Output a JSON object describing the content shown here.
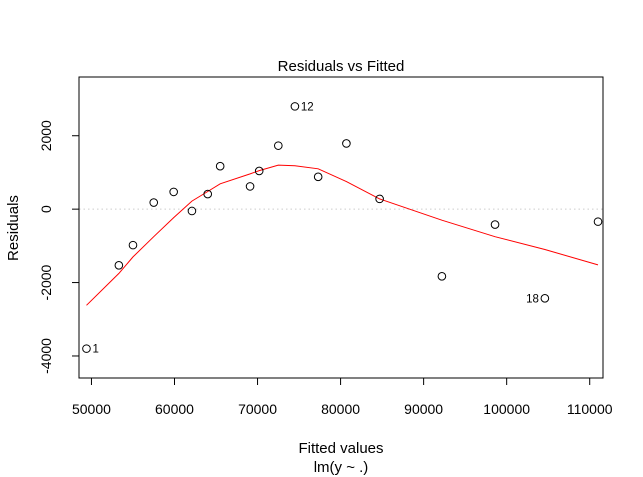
{
  "chart_data": {
    "type": "scatter",
    "title": "Residuals vs Fitted",
    "xlabel": "Fitted values",
    "xlabel2": "lm(y ~ .)",
    "ylabel": "Residuals",
    "xlim": [
      48500,
      111600
    ],
    "ylim": [
      -4600,
      3600
    ],
    "x_ticks": [
      50000,
      60000,
      70000,
      80000,
      90000,
      100000,
      110000
    ],
    "x_tick_labels": [
      "50000",
      "60000",
      "70000",
      "80000",
      "90000",
      "100000",
      "110000"
    ],
    "y_ticks": [
      -4000,
      -2000,
      0,
      2000
    ],
    "y_tick_labels": [
      "-4000",
      "-2000",
      "0",
      "2000"
    ],
    "points": [
      {
        "x": 49400,
        "y": -3800
      },
      {
        "x": 53300,
        "y": -1530
      },
      {
        "x": 55000,
        "y": -980
      },
      {
        "x": 57500,
        "y": 180
      },
      {
        "x": 59900,
        "y": 470
      },
      {
        "x": 62100,
        "y": -50
      },
      {
        "x": 64000,
        "y": 410
      },
      {
        "x": 65500,
        "y": 1170
      },
      {
        "x": 69100,
        "y": 620
      },
      {
        "x": 70200,
        "y": 1040
      },
      {
        "x": 72500,
        "y": 1730
      },
      {
        "x": 74500,
        "y": 2800
      },
      {
        "x": 77300,
        "y": 880
      },
      {
        "x": 80700,
        "y": 1790
      },
      {
        "x": 84700,
        "y": 280
      },
      {
        "x": 92200,
        "y": -1830
      },
      {
        "x": 98600,
        "y": -420
      },
      {
        "x": 104600,
        "y": -2430
      },
      {
        "x": 111000,
        "y": -340
      }
    ],
    "point_labels": [
      {
        "text": "1",
        "x": 49400,
        "y": -3800,
        "side": "right"
      },
      {
        "text": "12",
        "x": 74500,
        "y": 2800,
        "side": "right"
      },
      {
        "text": "18",
        "x": 104600,
        "y": -2430,
        "side": "left"
      }
    ],
    "smooth_line": {
      "color": "#ff0000",
      "x": [
        49400,
        53300,
        55000,
        57500,
        59900,
        62100,
        64000,
        65500,
        69100,
        70200,
        72500,
        74500,
        77300,
        80700,
        84700,
        92200,
        98600,
        104600,
        111000
      ],
      "y": [
        -2620,
        -1750,
        -1300,
        -750,
        -230,
        220,
        480,
        690,
        960,
        1050,
        1200,
        1180,
        1100,
        750,
        280,
        -300,
        -750,
        -1100,
        -1520
      ]
    },
    "zero_line": {
      "y": 0,
      "style": "dotted",
      "color": "#cccccc"
    },
    "grid": false,
    "point_style": "open-circle",
    "point_color": "#000000"
  }
}
